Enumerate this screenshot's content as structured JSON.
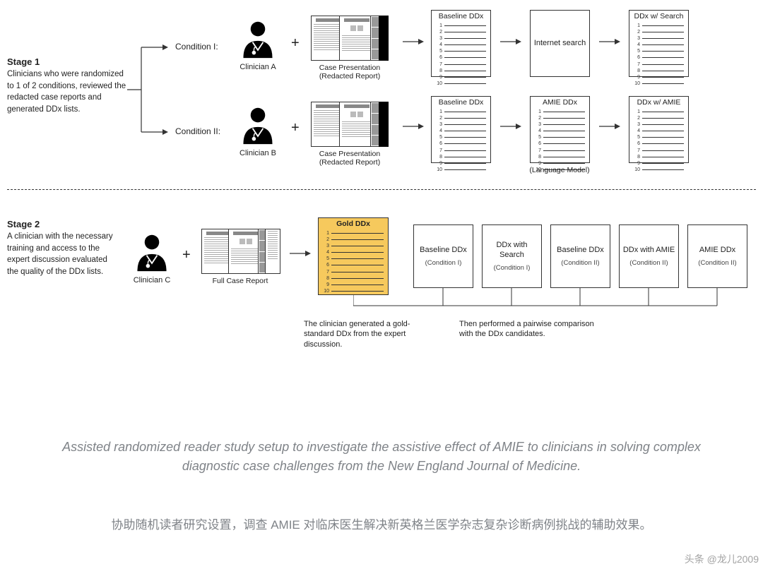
{
  "colors": {
    "text": "#222222",
    "border": "#333333",
    "gold": "#f6c95d",
    "divider": "#333333",
    "caption": "#7f8388"
  },
  "stage1": {
    "title": "Stage 1",
    "desc": "Clinicians who were randomized to 1 of 2 conditions, reviewed the redacted case reports and generated DDx lists.",
    "cond1_label": "Condition I:",
    "cond2_label": "Condition II:",
    "clinicianA": "Clinician A",
    "clinicianB": "Clinician B",
    "case_caption": "Case Presentation\n(Redacted Report)",
    "baseline_title": "Baseline DDx",
    "internet_search": "Internet search",
    "amie_ddx": "AMIE DDx",
    "lang_model": "(Language Model)",
    "ddx_search": "DDx w/ Search",
    "ddx_amie": "DDx w/ AMIE",
    "list_count": 10
  },
  "stage2": {
    "title": "Stage 2",
    "desc": "A clinician with the necessary training and access to the expert discussion evaluated the quality of the DDx lists.",
    "clinicianC": "Clinician C",
    "full_report": "Full Case Report",
    "gold_title": "Gold DDx",
    "gold_count": 10,
    "caption_left": "The clinician generated a gold-standard DDx from the expert discussion.",
    "caption_right": "Then performed a pairwise comparison with the DDx candidates.",
    "boxes": [
      {
        "title": "Baseline DDx",
        "sub": "(Condition I)"
      },
      {
        "title": "DDx with Search",
        "sub": "(Condition I)"
      },
      {
        "title": "Baseline DDx",
        "sub": "(Condition II)"
      },
      {
        "title": "DDx with AMIE",
        "sub": "(Condition II)"
      },
      {
        "title": "AMIE DDx",
        "sub": "(Condition II)"
      }
    ]
  },
  "caption_en": "Assisted randomized reader study setup to investigate the assistive effect of AMIE to clinicians in solving complex diagnostic case challenges from the New England Journal of Medicine.",
  "caption_zh": "协助随机读者研究设置，调查 AMIE 对临床医生解决新英格兰医学杂志复杂诊断病例挑战的辅助效果。",
  "watermark": "头条 @龙儿2009"
}
